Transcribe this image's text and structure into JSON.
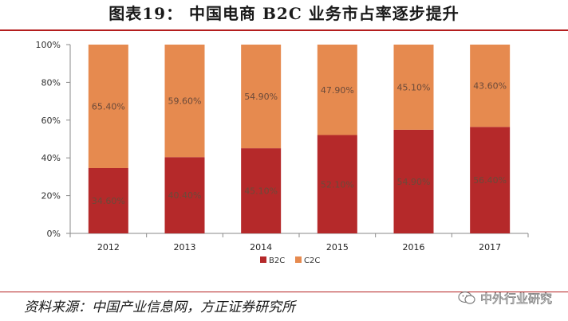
{
  "header": {
    "title": "图表19：   中国电商 B2C 业务市占率逐步提升"
  },
  "footer": {
    "source": "资料来源：中国产业信息网，方正证券研究所",
    "watermark": "中外行业研究",
    "watermark_icon": "wechat-icon"
  },
  "colors": {
    "b2c": "#b5292a",
    "c2c": "#e68a4f",
    "title_rule": "#b41e1e",
    "label": "#6b4a3a"
  },
  "chart_data": {
    "type": "bar",
    "stacked": true,
    "categories": [
      "2012",
      "2013",
      "2014",
      "2015",
      "2016",
      "2017"
    ],
    "series": [
      {
        "name": "B2C",
        "values": [
          34.6,
          40.4,
          45.1,
          52.1,
          54.9,
          56.4
        ],
        "labels": [
          "34.60%",
          "40.40%",
          "45.10%",
          "52.10%",
          "54.90%",
          "56.40%"
        ]
      },
      {
        "name": "C2C",
        "values": [
          65.4,
          59.6,
          54.9,
          47.9,
          45.1,
          43.6
        ],
        "labels": [
          "65.40%",
          "59.60%",
          "54.90%",
          "47.90%",
          "45.10%",
          "43.60%"
        ]
      }
    ],
    "yticks": [
      "0%",
      "20%",
      "40%",
      "60%",
      "80%",
      "100%"
    ],
    "ylim": [
      0,
      100
    ],
    "legend": "bottom-center",
    "grid": false
  }
}
